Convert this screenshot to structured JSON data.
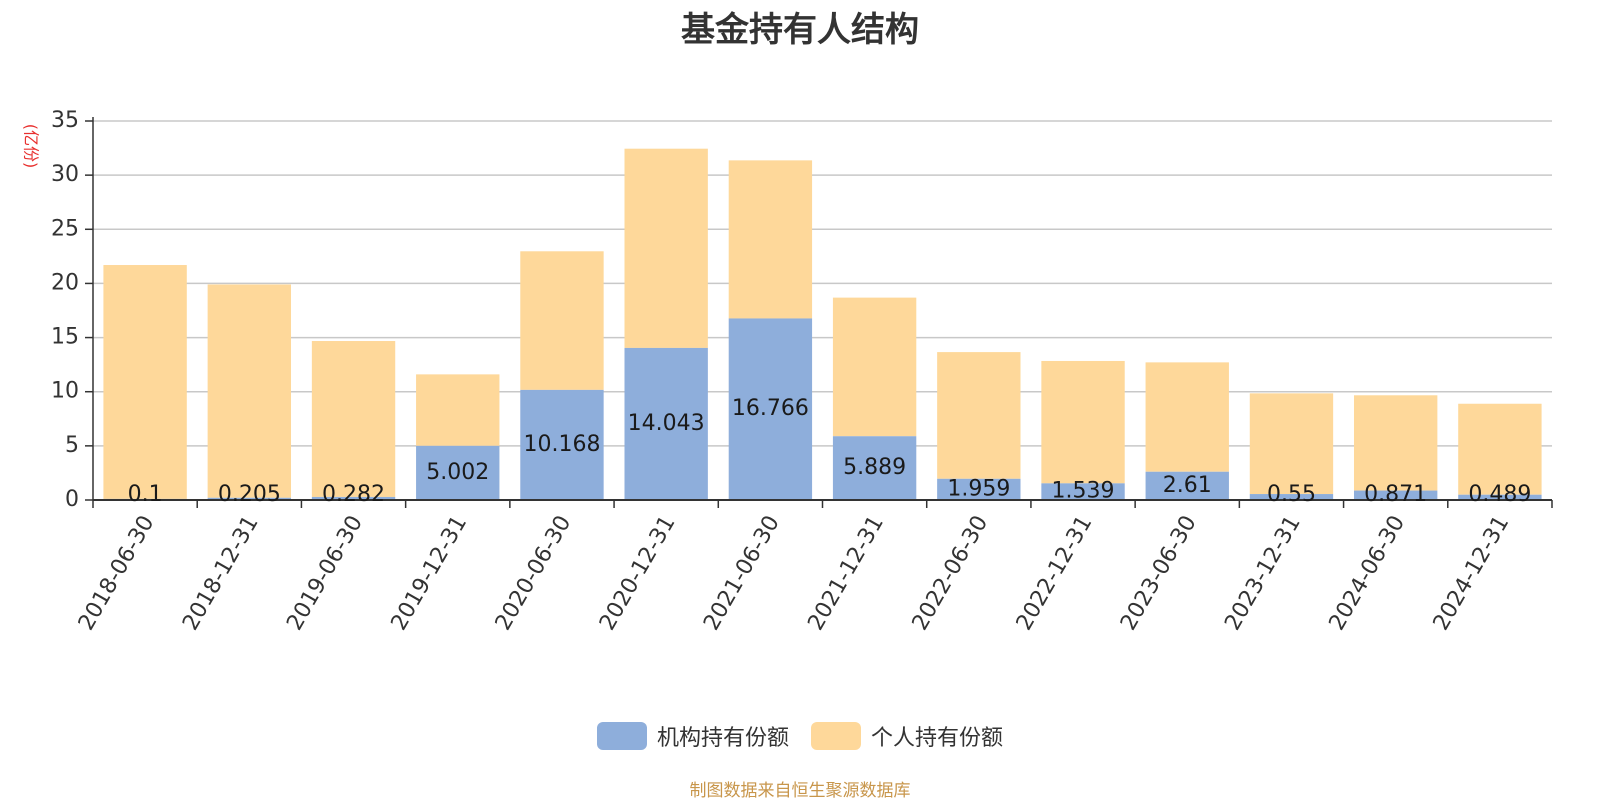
{
  "source_note": "制图数据来自恒生聚源数据库",
  "colors": {
    "institutional": "#8eaedb",
    "individual": "#fed89a",
    "unit_label": "#e8302e",
    "grid": "#c8c8c8",
    "axis": "#333333"
  },
  "chart_data": {
    "type": "bar",
    "stacked": true,
    "title": "基金持有人结构",
    "ylabel": "(亿份)",
    "xlabel": "",
    "ylim": [
      0,
      35
    ],
    "yticks": [
      0,
      5,
      10,
      15,
      20,
      25,
      30,
      35
    ],
    "grid": true,
    "legend_position": "bottom",
    "categories": [
      "2018-06-30",
      "2018-12-31",
      "2019-06-30",
      "2019-12-31",
      "2020-06-30",
      "2020-12-31",
      "2021-06-30",
      "2021-12-31",
      "2022-06-30",
      "2022-12-31",
      "2023-06-30",
      "2023-12-31",
      "2024-06-30",
      "2024-12-31"
    ],
    "series": [
      {
        "name": "机构持有份额",
        "values": [
          0.1,
          0.205,
          0.282,
          5.002,
          10.168,
          14.043,
          16.766,
          5.889,
          1.959,
          1.539,
          2.61,
          0.55,
          0.871,
          0.489
        ],
        "labels": [
          "0.1",
          "0.205",
          "0.282",
          "5.002",
          "10.168",
          "14.043",
          "16.766",
          "5.889",
          "1.959",
          "1.539",
          "2.61",
          "0.55",
          "0.871",
          "0.489"
        ]
      },
      {
        "name": "个人持有份额",
        "values": [
          21.6,
          19.7,
          14.4,
          6.6,
          12.8,
          18.4,
          14.6,
          12.8,
          11.7,
          11.3,
          10.1,
          9.3,
          8.8,
          8.4
        ]
      }
    ]
  }
}
